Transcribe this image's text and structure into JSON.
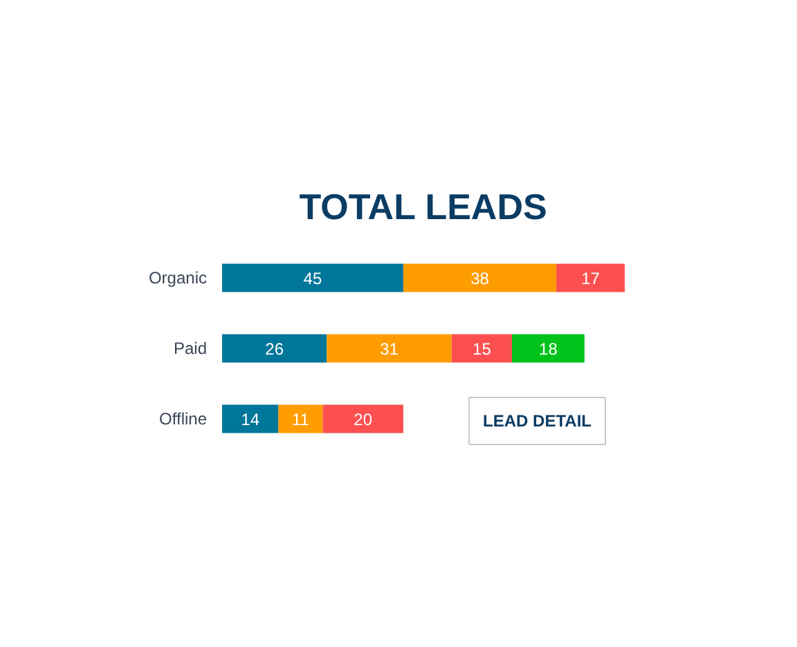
{
  "chart_data": {
    "type": "bar",
    "orientation": "horizontal",
    "stacked": true,
    "title": "TOTAL LEADS",
    "categories": [
      "Organic",
      "Paid",
      "Offline"
    ],
    "series": [
      {
        "color": "#00769a",
        "values": [
          45,
          26,
          14
        ]
      },
      {
        "color": "#ff9c00",
        "values": [
          38,
          31,
          11
        ]
      },
      {
        "color": "#fc5050",
        "values": [
          17,
          15,
          20
        ]
      },
      {
        "color": "#00c21a",
        "values": [
          null,
          18,
          null
        ]
      }
    ],
    "data_labels": true,
    "grid": false,
    "tick_labels": "y",
    "annotations": [
      "LEAD DETAIL"
    ]
  }
}
